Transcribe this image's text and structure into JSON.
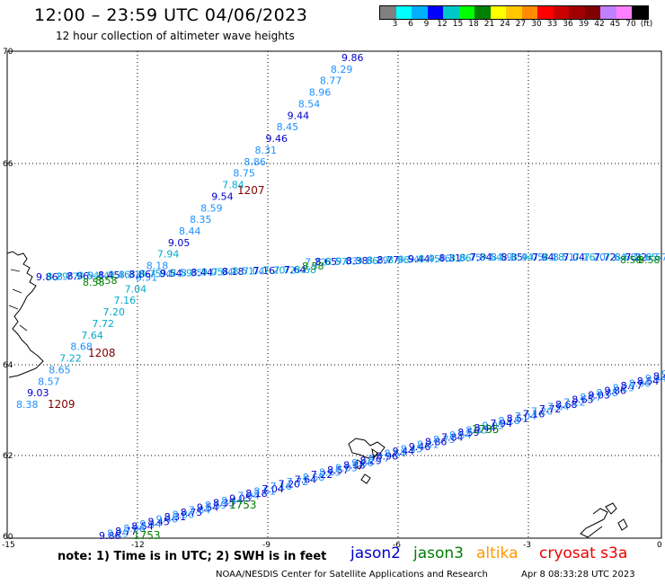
{
  "header": {
    "title": "12:00 – 23:59 UTC 04/06/2023",
    "subtitle": "12 hour collection of altimeter wave heights"
  },
  "colorbar": {
    "colors": [
      "#808080",
      "#00ffff",
      "#00b0ff",
      "#0000ff",
      "#00c8c8",
      "#00ff00",
      "#008000",
      "#ffff00",
      "#ffc800",
      "#ff8c00",
      "#ff0000",
      "#c80000",
      "#a00000",
      "#800000",
      "#c080ff",
      "#ff80ff",
      "#000000"
    ],
    "labels": [
      "3",
      "6",
      "9",
      "12",
      "15",
      "18",
      "21",
      "24",
      "27",
      "30",
      "33",
      "36",
      "39",
      "42",
      "45",
      "70",
      "(ft)"
    ]
  },
  "axes": {
    "x_ticks": [
      "-15",
      "-12",
      "-9",
      "-6",
      "-3",
      "0"
    ],
    "y_ticks": [
      "70",
      "66",
      "64",
      "62",
      "60"
    ]
  },
  "track_values": {
    "north_track": [
      "9.86",
      "8.29",
      "8.77",
      "8.96",
      "8.54",
      "9.44",
      "8.45",
      "9.46",
      "8.31",
      "8.86",
      "8.75",
      "7.84",
      "9.54",
      "8.59",
      "8.35",
      "8.44",
      "9.05",
      "7.94",
      "8.18",
      "8.51",
      "7.04",
      "7.16",
      "7.20",
      "7.72",
      "7.64",
      "8.68",
      "7.22",
      "8.65",
      "8.57",
      "9.03",
      "8.38"
    ],
    "time_labels": [
      "1207",
      "1208",
      "1209"
    ],
    "south_labels": [
      "1753",
      "1753",
      "1735"
    ]
  },
  "legend": {
    "note": "note:  1) Time is in UTC;  2) SWH is in feet",
    "satellites": [
      {
        "name": "jason2",
        "color": "#0000cc"
      },
      {
        "name": "jason3",
        "color": "#008000"
      },
      {
        "name": "altika",
        "color": "#ff9900"
      },
      {
        "name": "cryosat s3a",
        "color": "#ee0000"
      }
    ]
  },
  "footer": {
    "credit": "NOAA/NESDIS Center for Satellite Applications and Research",
    "timestamp": "Apr  8 08:33:28 UTC 2023"
  }
}
